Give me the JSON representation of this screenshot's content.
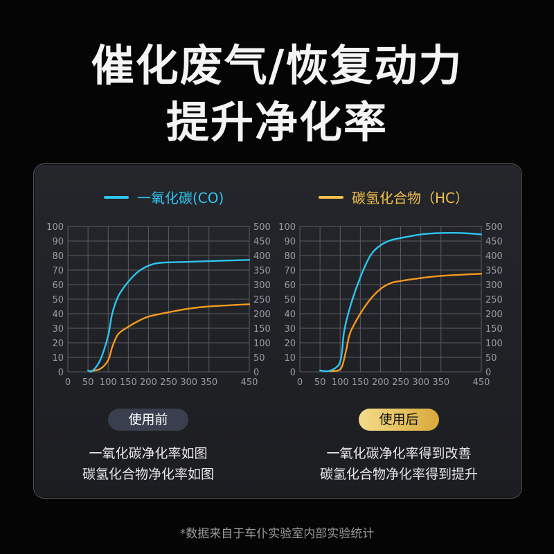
{
  "title_line1": "催化废气/恢复动力",
  "title_line2": "提升净化率",
  "legend": [
    {
      "label": "一氧化碳(CO)",
      "color": "#2ec5f0"
    },
    {
      "label": "碳氢化合物（HC）",
      "color": "#f2c04a"
    }
  ],
  "colors": {
    "co_line": "#2ec5f0",
    "hc_line": "#f59a1e",
    "before_badge": "#3a3f4f",
    "after_badge": "#e9c75a"
  },
  "chart_data": [
    {
      "type": "line",
      "xlim": [
        0,
        450
      ],
      "ylim": [
        0,
        100
      ],
      "y2lim": [
        0,
        500
      ],
      "grid": true,
      "xticks": [
        "0",
        "50",
        "100",
        "150",
        "200",
        "250",
        "300",
        "350",
        "450"
      ],
      "yticks": [
        "0",
        "10",
        "20",
        "30",
        "40",
        "50",
        "60",
        "70",
        "80",
        "90",
        "100"
      ],
      "y2ticks": [
        "0",
        "50",
        "100",
        "150",
        "200",
        "250",
        "300",
        "350",
        "400",
        "450",
        "500"
      ],
      "series": [
        {
          "name": "一氧化碳(CO)",
          "points": [
            [
              50,
              1
            ],
            [
              60,
              0.5
            ],
            [
              80,
              8
            ],
            [
              100,
              25
            ],
            [
              110,
              40
            ],
            [
              125,
              52
            ],
            [
              150,
              62
            ],
            [
              175,
              69
            ],
            [
              200,
              73
            ],
            [
              230,
              75
            ],
            [
              300,
              75.7
            ],
            [
              450,
              77
            ]
          ]
        },
        {
          "name": "碳氢化合物（HC）",
          "points": [
            [
              55,
              0.5
            ],
            [
              80,
              2
            ],
            [
              100,
              8
            ],
            [
              110,
              17
            ],
            [
              125,
              26
            ],
            [
              150,
              31
            ],
            [
              175,
              35
            ],
            [
              200,
              38
            ],
            [
              250,
              41
            ],
            [
              300,
              43.5
            ],
            [
              350,
              45
            ],
            [
              450,
              46.5
            ]
          ]
        }
      ]
    },
    {
      "type": "line",
      "xlim": [
        0,
        450
      ],
      "ylim": [
        0,
        100
      ],
      "y2lim": [
        0,
        500
      ],
      "grid": true,
      "xticks": [
        "0",
        "50",
        "100",
        "150",
        "200",
        "250",
        "300",
        "350",
        "450"
      ],
      "yticks": [
        "0",
        "10",
        "20",
        "30",
        "40",
        "50",
        "60",
        "70",
        "80",
        "90",
        "100"
      ],
      "y2ticks": [
        "0",
        "50",
        "100",
        "150",
        "200",
        "250",
        "300",
        "350",
        "400",
        "450",
        "500"
      ],
      "series": [
        {
          "name": "一氧化碳(CO)",
          "points": [
            [
              50,
              1
            ],
            [
              70,
              0.5
            ],
            [
              90,
              3
            ],
            [
              100,
              7
            ],
            [
              105,
              15
            ],
            [
              110,
              28
            ],
            [
              125,
              45
            ],
            [
              150,
              65
            ],
            [
              175,
              80
            ],
            [
              200,
              87
            ],
            [
              225,
              90.5
            ],
            [
              250,
              92
            ],
            [
              300,
              94.5
            ],
            [
              350,
              95.5
            ],
            [
              400,
              95.5
            ],
            [
              450,
              94.5
            ]
          ]
        },
        {
          "name": "碳氢化合物（HC）",
          "points": [
            [
              75,
              0.5
            ],
            [
              95,
              1
            ],
            [
              105,
              4
            ],
            [
              115,
              15
            ],
            [
              125,
              27
            ],
            [
              150,
              40
            ],
            [
              175,
              50
            ],
            [
              200,
              57
            ],
            [
              225,
              61
            ],
            [
              250,
              62.5
            ],
            [
              300,
              64.5
            ],
            [
              350,
              66
            ],
            [
              450,
              67.5
            ]
          ]
        }
      ]
    }
  ],
  "before": {
    "badge": "使用前",
    "line1": "一氧化碳净化率如图",
    "line2": "碳氢化合物净化率如图"
  },
  "after": {
    "badge": "使用后",
    "line1": "一氧化碳净化率得到改善",
    "line2": "碳氢化合物净化率得到提升"
  },
  "footnote": "*数据来自于车仆实验室内部实验统计"
}
